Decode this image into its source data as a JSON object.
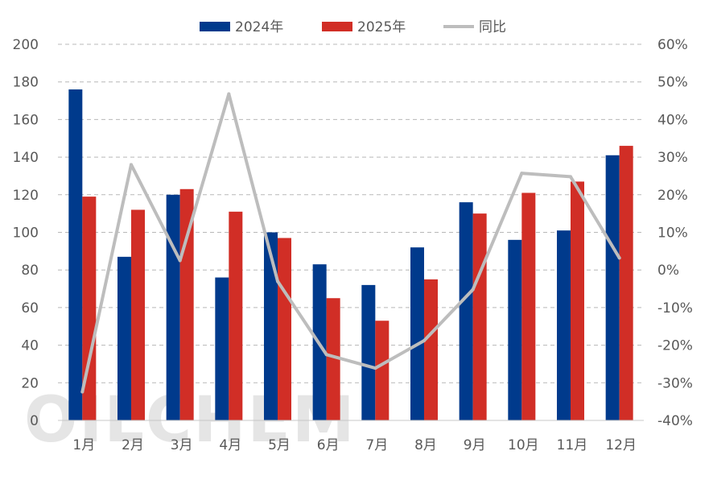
{
  "chart_data": {
    "type": "bar",
    "title": "",
    "categories": [
      "1月",
      "2月",
      "3月",
      "4月",
      "5月",
      "6月",
      "7月",
      "8月",
      "9月",
      "10月",
      "11月",
      "12月"
    ],
    "series": [
      {
        "name": "2024年",
        "type": "bar",
        "axis": "left",
        "color": "#003a8c",
        "values": [
          176,
          87,
          120,
          76,
          100,
          83,
          72,
          92,
          116,
          96,
          101,
          141
        ]
      },
      {
        "name": "2025年",
        "type": "bar",
        "axis": "left",
        "color": "#d12e26",
        "values": [
          119,
          112,
          123,
          111,
          97,
          65,
          53,
          75,
          110,
          121,
          127,
          146
        ]
      },
      {
        "name": "同比",
        "type": "line",
        "axis": "right",
        "color": "#bdbdbd",
        "values": [
          -32.4,
          28.0,
          2.5,
          46.8,
          -3.0,
          -22.5,
          -26.1,
          -18.8,
          -5.2,
          25.7,
          24.8,
          3.2
        ]
      }
    ],
    "y_left": {
      "min": 0,
      "max": 200,
      "ticks": [
        0,
        20,
        40,
        60,
        80,
        100,
        120,
        140,
        160,
        180,
        200
      ]
    },
    "y_right": {
      "min": -40,
      "max": 60,
      "ticks": [
        -40,
        -30,
        -20,
        -10,
        0,
        10,
        20,
        30,
        40,
        50,
        60
      ],
      "tick_labels": [
        "-40%",
        "-30%",
        "-20%",
        "-10%",
        "0%",
        "10%",
        "20%",
        "30%",
        "40%",
        "50%",
        "60%"
      ]
    },
    "grid": true,
    "legend_position": "top-center",
    "watermark": "OILCHEM"
  }
}
